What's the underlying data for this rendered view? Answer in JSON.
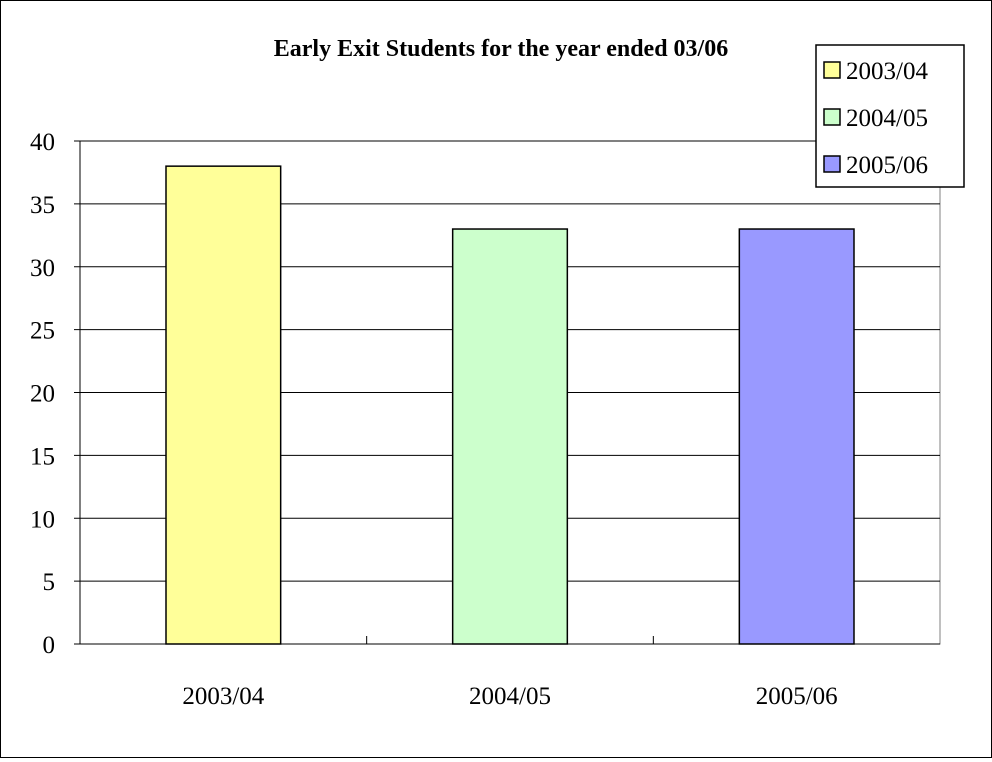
{
  "chart_data": {
    "type": "bar",
    "title": "Early Exit Students for the year ended 03/06",
    "xlabel": "",
    "ylabel": "",
    "categories": [
      "2003/04",
      "2004/05",
      "2005/06"
    ],
    "values": [
      38,
      33,
      33
    ],
    "colors": [
      "#ffff99",
      "#ccffcc",
      "#9999ff"
    ],
    "ylim": [
      0,
      40
    ],
    "yticks": [
      "0",
      "5",
      "10",
      "15",
      "20",
      "25",
      "30",
      "35",
      "40"
    ],
    "grid": true,
    "legend": {
      "position": "top-right",
      "entries": [
        "2003/04",
        "2004/05",
        "2005/06"
      ]
    }
  }
}
